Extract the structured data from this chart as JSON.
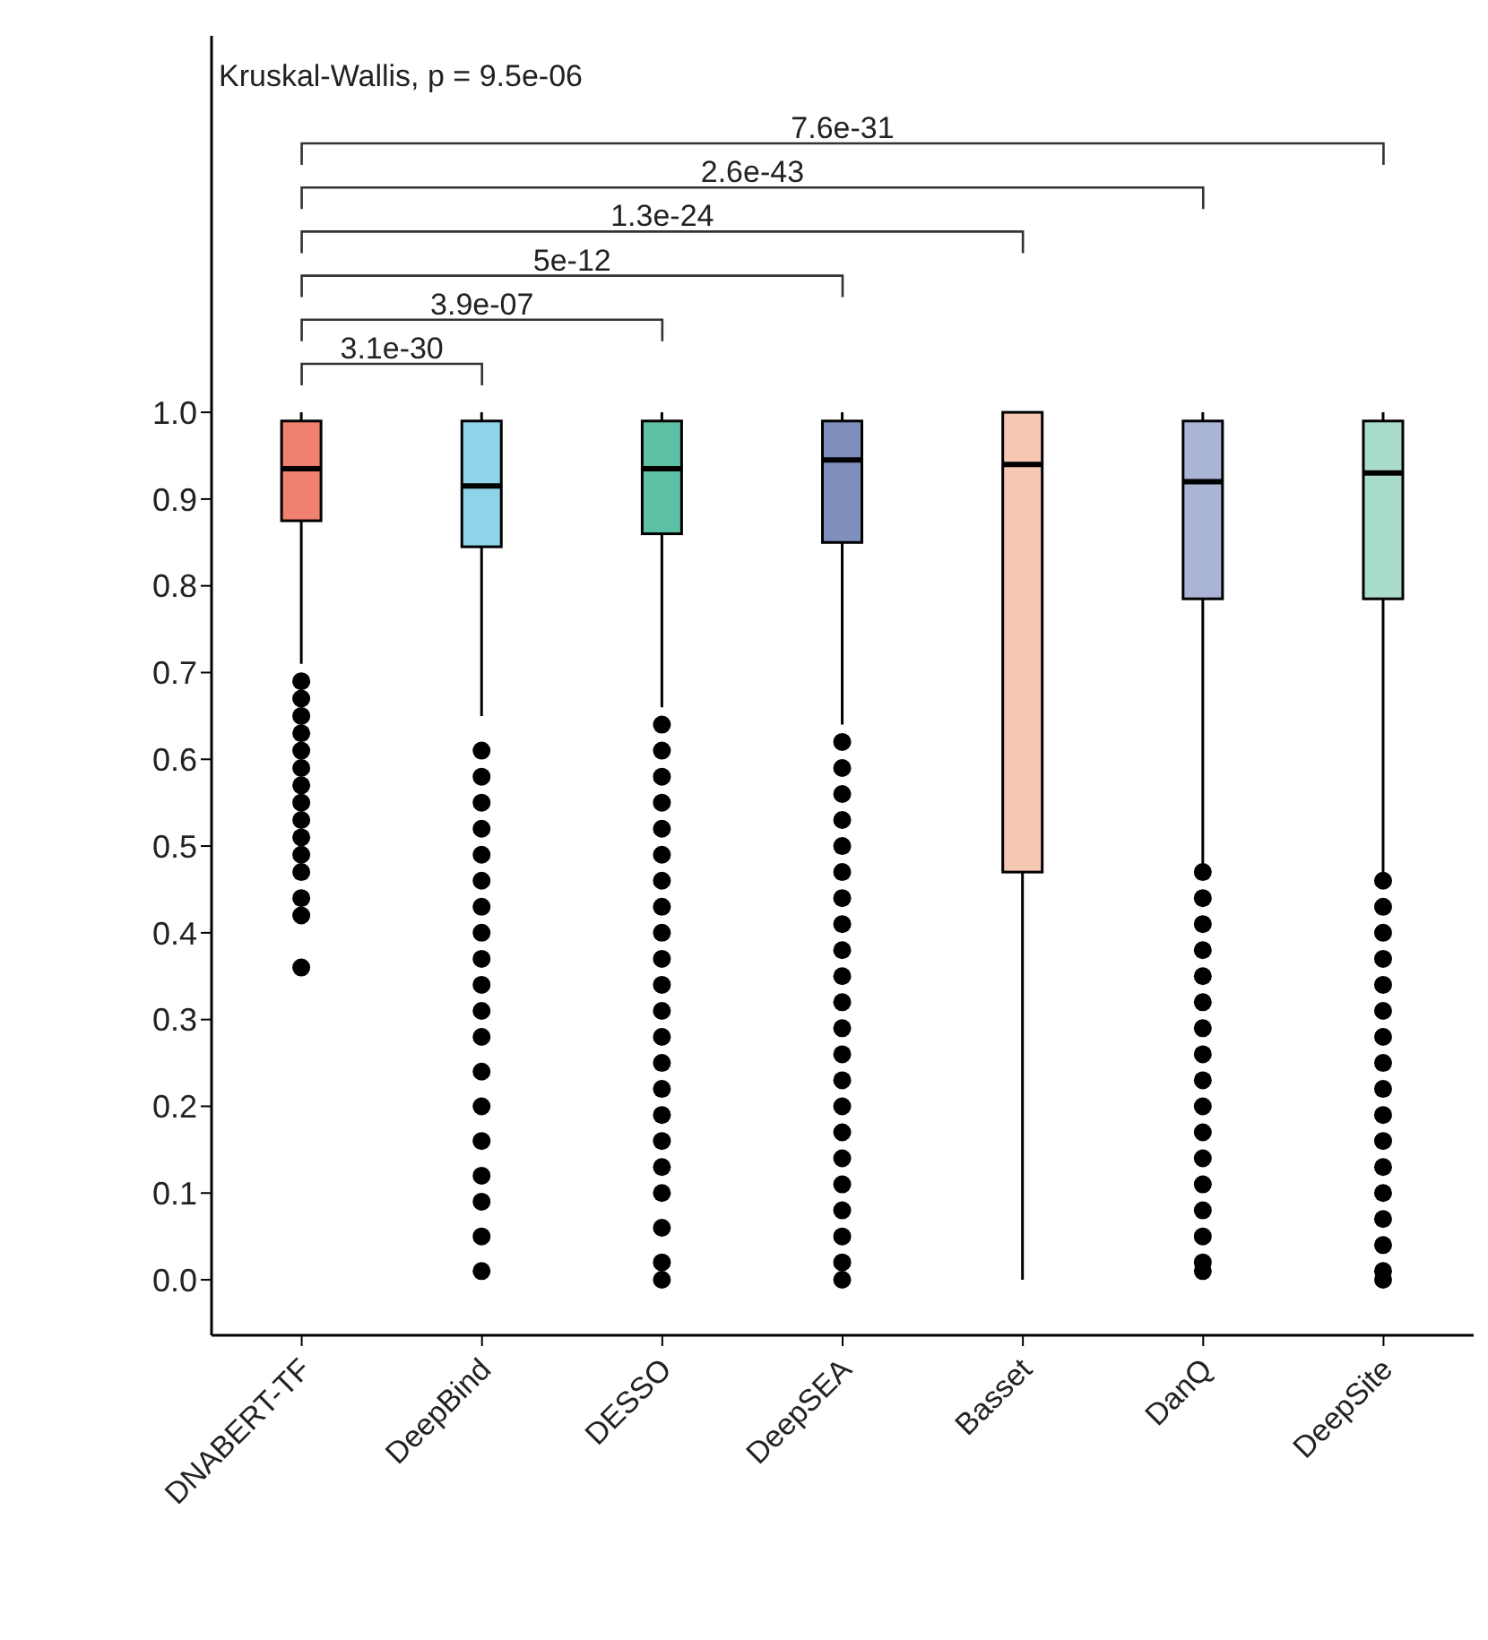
{
  "chart_data": {
    "type": "box",
    "categories": [
      "DNABERT-TF",
      "DeepBind",
      "DESSO",
      "DeepSEA",
      "Basset",
      "DanQ",
      "DeepSite"
    ],
    "colors": [
      "#f08070",
      "#8fd3e8",
      "#5dc0a5",
      "#7e8fbb",
      "#f6c8b4",
      "#aab4d4",
      "#a9dccb"
    ],
    "boxes": [
      {
        "low": 0.71,
        "q1": 0.875,
        "median": 0.935,
        "q3": 0.99,
        "high": 1.0,
        "outliers": [
          0.69,
          0.67,
          0.65,
          0.63,
          0.61,
          0.59,
          0.57,
          0.55,
          0.53,
          0.51,
          0.49,
          0.47,
          0.44,
          0.42,
          0.36
        ]
      },
      {
        "low": 0.65,
        "q1": 0.845,
        "median": 0.915,
        "q3": 0.99,
        "high": 1.0,
        "outliers": [
          0.61,
          0.58,
          0.55,
          0.52,
          0.49,
          0.46,
          0.43,
          0.4,
          0.37,
          0.34,
          0.31,
          0.28,
          0.24,
          0.2,
          0.16,
          0.12,
          0.09,
          0.05,
          0.01
        ]
      },
      {
        "low": 0.66,
        "q1": 0.86,
        "median": 0.935,
        "q3": 0.99,
        "high": 1.0,
        "outliers": [
          0.64,
          0.61,
          0.58,
          0.55,
          0.52,
          0.49,
          0.46,
          0.43,
          0.4,
          0.37,
          0.34,
          0.31,
          0.28,
          0.25,
          0.22,
          0.19,
          0.16,
          0.13,
          0.1,
          0.06,
          0.02,
          0.0
        ]
      },
      {
        "low": 0.64,
        "q1": 0.85,
        "median": 0.945,
        "q3": 0.99,
        "high": 1.0,
        "outliers": [
          0.62,
          0.59,
          0.56,
          0.53,
          0.5,
          0.47,
          0.44,
          0.41,
          0.38,
          0.35,
          0.32,
          0.29,
          0.26,
          0.23,
          0.2,
          0.17,
          0.14,
          0.11,
          0.08,
          0.05,
          0.02,
          0.0
        ]
      },
      {
        "low": 0.0,
        "q1": 0.47,
        "median": 0.94,
        "q3": 1.0,
        "high": 1.0
      },
      {
        "low": 0.48,
        "q1": 0.785,
        "median": 0.92,
        "q3": 0.99,
        "high": 1.0,
        "outliers": [
          0.47,
          0.44,
          0.41,
          0.38,
          0.35,
          0.32,
          0.29,
          0.26,
          0.23,
          0.2,
          0.17,
          0.14,
          0.11,
          0.08,
          0.05,
          0.02,
          0.01
        ]
      },
      {
        "low": 0.47,
        "q1": 0.785,
        "median": 0.93,
        "q3": 0.99,
        "high": 1.0,
        "outliers": [
          0.46,
          0.43,
          0.4,
          0.37,
          0.34,
          0.31,
          0.28,
          0.25,
          0.22,
          0.19,
          0.16,
          0.13,
          0.1,
          0.07,
          0.04,
          0.01,
          0.0
        ]
      }
    ],
    "ylim": [
      -0.064,
      1.434
    ],
    "yticks": [
      {
        "value": 0,
        "label": "0.0"
      },
      {
        "value": 0.1,
        "label": "0.1"
      },
      {
        "value": 0.2,
        "label": "0.2"
      },
      {
        "value": 0.3,
        "label": "0.3"
      },
      {
        "value": 0.4,
        "label": "0.4"
      },
      {
        "value": 0.5,
        "label": "0.5"
      },
      {
        "value": 0.6,
        "label": "0.6"
      },
      {
        "value": 0.7,
        "label": "0.7"
      },
      {
        "value": 0.8,
        "label": "0.8"
      },
      {
        "value": 0.9,
        "label": "0.9"
      },
      {
        "value": 1,
        "label": "1.0"
      }
    ],
    "grid": false,
    "legend": false,
    "annotations": [
      "Kruskal-Wallis, p = 9.5e-06",
      "3.1e-30",
      "3.9e-07",
      "5e-12",
      "1.3e-24",
      "2.6e-43",
      "7.6e-31"
    ]
  }
}
